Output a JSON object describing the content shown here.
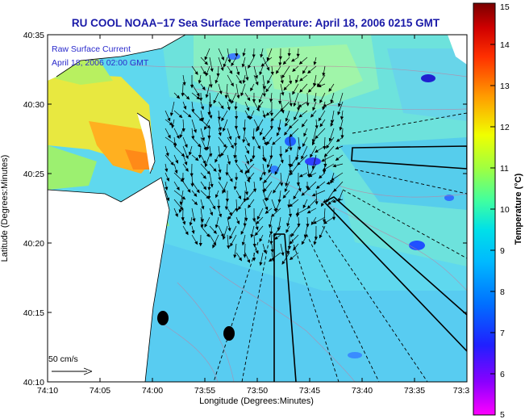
{
  "chart_data": {
    "type": "heatmap",
    "title": "RU COOL  NOAA−17  Sea Surface Temperature:  April 18, 2006 0215 GMT",
    "xlabel": "Longitude (Degrees:Minutes)",
    "ylabel": "Latitude (Degrees:Minutes)",
    "x_tick_labels": [
      "74:10",
      "74:05",
      "74:00",
      "73:55",
      "73:50",
      "73:45",
      "73:40",
      "73:35",
      "73:3"
    ],
    "y_tick_labels": [
      "40:35",
      "40:30",
      "40:25",
      "40:20",
      "40:15",
      "40:10"
    ],
    "x_range_minutes_west": [
      74.1667,
      73.5
    ],
    "y_range_minutes_north": [
      40.1667,
      40.5833
    ],
    "colorbar": {
      "label": "Temperature (°C)",
      "ticks": [
        "15",
        "14",
        "13",
        "12",
        "11",
        "10",
        "9",
        "8",
        "7",
        "6",
        "5"
      ],
      "range": [
        5,
        15
      ],
      "colors": [
        "#ff00ff",
        "#6a00ff",
        "#0000ff",
        "#0080ff",
        "#00d0ff",
        "#40ffb0",
        "#a0ff40",
        "#ffff00",
        "#ffb000",
        "#ff5000",
        "#d00000",
        "#7a0000"
      ]
    },
    "annotation": {
      "line1": "Raw Surface Current",
      "line2": "April 18, 2006 02:00 GMT"
    },
    "scale_label": "50 cm/s",
    "grid": false
  }
}
